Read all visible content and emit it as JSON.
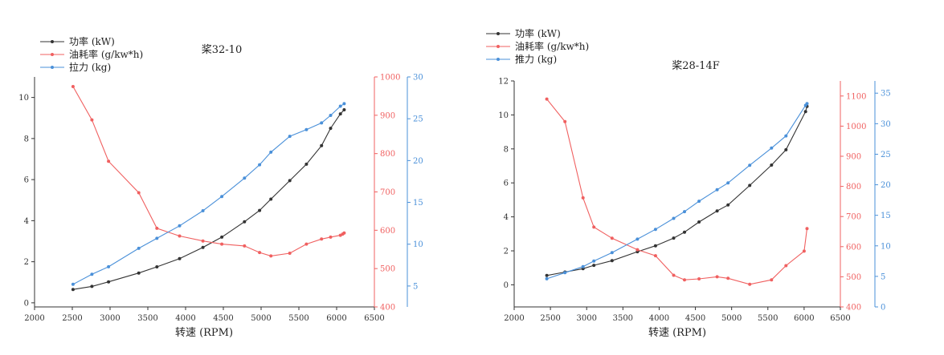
{
  "chart_data": [
    {
      "type": "line",
      "title": "桨32-10",
      "xlabel": "转速 (RPM)",
      "xlim": [
        2000,
        6500
      ],
      "xticks": [
        2000,
        2500,
        3000,
        3500,
        4000,
        4500,
        5000,
        5500,
        6000,
        6500
      ],
      "legend_position": "top-left",
      "grid": false,
      "axes": [
        {
          "id": "left",
          "color": "#333333",
          "lim": [
            -0.2,
            11
          ],
          "ticks": [
            0,
            2,
            4,
            6,
            8,
            10
          ]
        },
        {
          "id": "right1",
          "color": "#f06060",
          "lim": [
            400,
            1000
          ],
          "ticks": [
            400,
            500,
            600,
            700,
            800,
            900,
            1000
          ]
        },
        {
          "id": "right2",
          "color": "#4a90d9",
          "lim": [
            2.5,
            30
          ],
          "ticks": [
            5,
            10,
            15,
            20,
            25,
            30
          ]
        }
      ],
      "series": [
        {
          "name": "功率 (kW)",
          "axis": "left",
          "color": "#333333",
          "x": [
            2510,
            2760,
            2980,
            3380,
            3620,
            3920,
            4230,
            4480,
            4780,
            4980,
            5130,
            5380,
            5600,
            5800,
            5920,
            6050,
            6100
          ],
          "y": [
            0.65,
            0.8,
            1.02,
            1.45,
            1.75,
            2.15,
            2.7,
            3.2,
            3.95,
            4.5,
            5.05,
            5.95,
            6.75,
            7.65,
            8.5,
            9.2,
            9.4
          ]
        },
        {
          "name": "油耗率 (g/kw*h)",
          "axis": "right1",
          "color": "#f06060",
          "x": [
            2510,
            2760,
            2980,
            3380,
            3620,
            3920,
            4230,
            4480,
            4780,
            4980,
            5130,
            5380,
            5600,
            5800,
            5920,
            6050,
            6080,
            6100
          ],
          "y": [
            975,
            888,
            780,
            698,
            605,
            585,
            572,
            564,
            559,
            542,
            533,
            540,
            564,
            577,
            582,
            587,
            590,
            593
          ]
        },
        {
          "name": "拉力 (kg)",
          "axis": "right2",
          "color": "#4a90d9",
          "x": [
            2510,
            2760,
            2980,
            3380,
            3620,
            3920,
            4230,
            4480,
            4780,
            4980,
            5130,
            5380,
            5600,
            5800,
            5920,
            6050,
            6100
          ],
          "y": [
            5.2,
            6.4,
            7.3,
            9.5,
            10.7,
            12.2,
            14.0,
            15.7,
            17.9,
            19.5,
            21.0,
            22.9,
            23.7,
            24.5,
            25.4,
            26.5,
            26.8
          ]
        }
      ]
    },
    {
      "type": "line",
      "title": "桨28-14F",
      "xlabel": "转速 (RPM)",
      "xlim": [
        2000,
        6500
      ],
      "xticks": [
        2000,
        2500,
        3000,
        3500,
        4000,
        4500,
        5000,
        5500,
        6000,
        6500
      ],
      "legend_position": "top-left",
      "grid": false,
      "axes": [
        {
          "id": "left",
          "color": "#333333",
          "lim": [
            -1.3,
            12
          ],
          "ticks": [
            0,
            2,
            4,
            6,
            8,
            10,
            12
          ]
        },
        {
          "id": "right1",
          "color": "#f06060",
          "lim": [
            400,
            1150
          ],
          "ticks": [
            400,
            500,
            600,
            700,
            800,
            900,
            1000,
            1100
          ]
        },
        {
          "id": "right2",
          "color": "#4a90d9",
          "lim": [
            0,
            37
          ],
          "ticks": [
            0,
            5,
            10,
            15,
            20,
            25,
            30,
            35
          ]
        }
      ],
      "series": [
        {
          "name": "功率 (kW)",
          "axis": "left",
          "color": "#333333",
          "x": [
            2450,
            2700,
            2950,
            3100,
            3350,
            3700,
            3950,
            4200,
            4350,
            4550,
            4800,
            4950,
            5250,
            5550,
            5750,
            6020,
            6040
          ],
          "y": [
            0.55,
            0.75,
            0.95,
            1.15,
            1.42,
            1.95,
            2.3,
            2.75,
            3.1,
            3.7,
            4.35,
            4.7,
            5.85,
            7.05,
            7.95,
            10.2,
            10.5
          ]
        },
        {
          "name": "油耗率 (g/kw*h)",
          "axis": "right1",
          "color": "#f06060",
          "x": [
            2450,
            2700,
            2950,
            3100,
            3350,
            3700,
            3950,
            4200,
            4350,
            4550,
            4800,
            4950,
            5250,
            5550,
            5750,
            6000,
            6040
          ],
          "y": [
            1090,
            1015,
            762,
            665,
            628,
            590,
            570,
            505,
            490,
            493,
            500,
            495,
            475,
            490,
            537,
            585,
            660
          ]
        },
        {
          "name": "推力 (kg)",
          "axis": "right2",
          "color": "#4a90d9",
          "x": [
            2450,
            2700,
            2950,
            3100,
            3350,
            3700,
            3950,
            4200,
            4350,
            4550,
            4800,
            4950,
            5250,
            5550,
            5750,
            6020,
            6040
          ],
          "y": [
            4.6,
            5.6,
            6.6,
            7.5,
            8.9,
            11.1,
            12.7,
            14.5,
            15.6,
            17.3,
            19.2,
            20.3,
            23.2,
            26.0,
            28.0,
            33.0,
            33.3
          ]
        }
      ]
    }
  ]
}
